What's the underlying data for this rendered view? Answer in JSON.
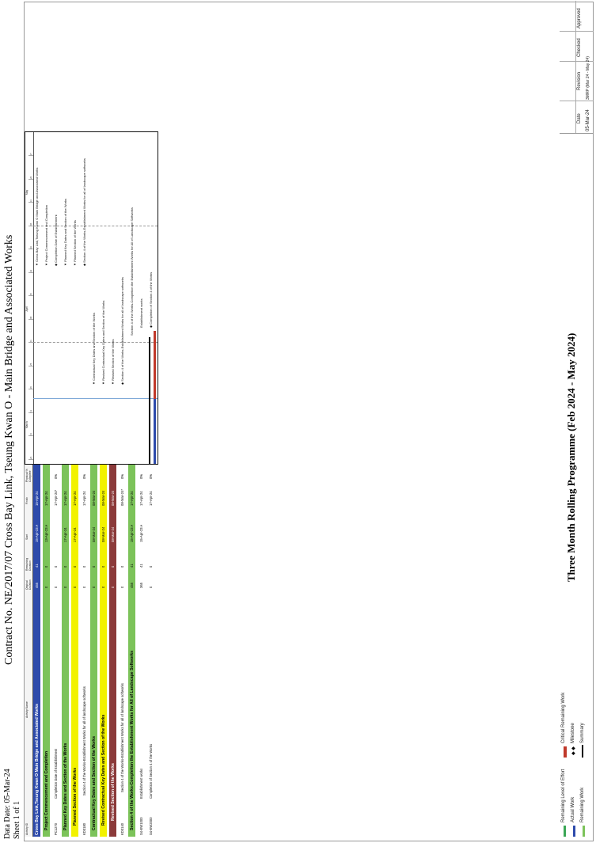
{
  "header": {
    "data_date": "Data Date: 05-Mar-24",
    "sheet": "Sheet 1 of 1",
    "contract_title": "Contract  No. NE/2017/07 Cross Bay Link, Tseung Kwan O - Main Bridge and Associated Works"
  },
  "table": {
    "columns": [
      "Activity ID",
      "Activity Name",
      "Original Duration",
      "Remaining Duration",
      "Start",
      "Finish",
      "Physical % Complete"
    ],
    "rows": [
      {
        "id": "",
        "name": "Cross Bay Link,Tseung Kwan O Main Bridge and Associated Works",
        "od": "455",
        "rd": "41",
        "start": "15-Apr-23 A",
        "finish": "15-Apr-24",
        "pct": "",
        "color": "#2e4bab",
        "text": "#ffffff",
        "level": 0,
        "bold": true
      },
      {
        "id": "",
        "name": "Project Commencement and Completion",
        "od": "0",
        "rd": "0",
        "start": "13-Apr-23 A",
        "finish": "17-Apr-24",
        "pct": "",
        "color": "#7cc35a",
        "text": "#000000",
        "level": 1,
        "bold": true
      },
      {
        "id": "PC1270",
        "name": "Completion Date of Establishment",
        "od": "0",
        "rd": "0",
        "start": "",
        "finish": "17-Apr-24*",
        "pct": "0%",
        "color": "#ffffff",
        "text": "#000000",
        "level": 2,
        "bold": false
      },
      {
        "id": "",
        "name": "Planned Key Dates and Section of the Works",
        "od": "0",
        "rd": "0",
        "start": "17-Apr-24",
        "finish": "17-Apr-24",
        "pct": "",
        "color": "#7cc35a",
        "text": "#000000",
        "level": 1,
        "bold": true
      },
      {
        "id": "",
        "name": "Planned Section of the Works",
        "od": "0",
        "rd": "0",
        "start": "17-Apr-24",
        "finish": "17-Apr-24",
        "pct": "",
        "color": "#f2f200",
        "text": "#000000",
        "level": 2,
        "bold": true
      },
      {
        "id": "KD3180",
        "name": "Section 4 of the Works-Establishment Works for all of landscape softworks",
        "od": "0",
        "rd": "0",
        "start": "",
        "finish": "17-Apr-24",
        "pct": "0%",
        "color": "#ffffff",
        "text": "#000000",
        "level": 3,
        "bold": false
      },
      {
        "id": "",
        "name": "Contractual Key Dates and Section of the Works",
        "od": "0",
        "rd": "0",
        "start": "08-Mar-24",
        "finish": "08-Mar-24",
        "pct": "",
        "color": "#7cc35a",
        "text": "#000000",
        "level": 1,
        "bold": true
      },
      {
        "id": "",
        "name": "Revised Contractual Key Dates and Section of the Works",
        "od": "0",
        "rd": "0",
        "start": "08-Mar-24",
        "finish": "08-Mar-24",
        "pct": "",
        "color": "#f2f200",
        "text": "#000000",
        "level": 2,
        "bold": true
      },
      {
        "id": "",
        "name": "Revised Section of the Works",
        "od": "0",
        "rd": "0",
        "start": "08-Mar-24",
        "finish": "08-Mar-24",
        "pct": "",
        "color": "#8b3a3a",
        "text": "#ffffff",
        "level": 3,
        "bold": true
      },
      {
        "id": "KD3140",
        "name": "Section 4 of the Works-Establishment Works for all of landscape softworks",
        "od": "0",
        "rd": "0",
        "start": "",
        "finish": "08-Mar-24*",
        "pct": "0%",
        "color": "#ffffff",
        "text": "#000000",
        "level": 4,
        "bold": false
      },
      {
        "id": "",
        "name": "Section 4 of the Works-Completion the Establishment Works for All of Landscape Softworks",
        "od": "455",
        "rd": "41",
        "start": "15-Apr-23 A",
        "finish": "17-Apr-24",
        "pct": "",
        "color": "#7cc35a",
        "text": "#000000",
        "level": 1,
        "bold": true
      },
      {
        "id": "S4-EW1000",
        "name": "Establishment works",
        "od": "365",
        "rd": "41",
        "start": "15-Apr-23 A",
        "finish": "17-Apr-24",
        "pct": "0%",
        "color": "#ffffff",
        "text": "#000000",
        "level": 2,
        "bold": false
      },
      {
        "id": "S4-EW2000",
        "name": "Completion of Section 4 of the Works",
        "od": "0",
        "rd": "0",
        "start": "",
        "finish": "17-Apr-24",
        "pct": "0%",
        "color": "#ffffff",
        "text": "#000000",
        "level": 2,
        "bold": false
      }
    ]
  },
  "gantt": {
    "timescale": {
      "months": [
        "March",
        "April",
        "May"
      ],
      "weeks": [
        "26",
        "04",
        "11",
        "18",
        "25",
        "01",
        "08",
        "15",
        "22",
        "29",
        "06",
        "13",
        "20",
        "27"
      ]
    },
    "labels": [
      "▼ Cross Bay Link,Tseung Kwan O Main Bridge and Associated Works",
      "▼ Project Commencement and Completion",
      "◆ Completion Date of Establishment",
      "▼ Planned Key Dates and Section of the Works",
      "▼ Planned Section of the Works",
      "◆ Section 4 of the Works-Establishment Works for all of landscape softworks",
      "▼ Contractual Key Dates and Section of the Works",
      "▼ Revised Contractual Key Dates and Section of the Works",
      "▼ Revised Section of the Works",
      "◆ Section 4 of the Works-Establishment Works for all of landscape softworks",
      "Section 4 of the Works-Completion the Establishment Works for All of Landscape Softworks",
      "Establishment works",
      "◆ Completion of Section 4 of the Works"
    ]
  },
  "legend": {
    "items": [
      {
        "label": "Remaining Level of Effort",
        "color": "#3aa655"
      },
      {
        "label": "Actual Work",
        "color": "#2e4bab"
      },
      {
        "label": "Remaining Work",
        "color": "#7cc35a"
      },
      {
        "label": "Critical Remaining Work",
        "color": "#c0392b"
      },
      {
        "label": "Milestone",
        "color": "#000000"
      },
      {
        "label": "Summary",
        "color": "#000000"
      }
    ]
  },
  "footer": {
    "program_title": "Three Month Rolling Programme (Feb 2024 - May 2024)",
    "col_date": "Date",
    "col_revision": "Revision",
    "col_checked": "Checked",
    "col_approved": "Approved",
    "date_value": "05-Mar-24",
    "revision_value": "3MRP (Mar 24 - May 24)"
  }
}
